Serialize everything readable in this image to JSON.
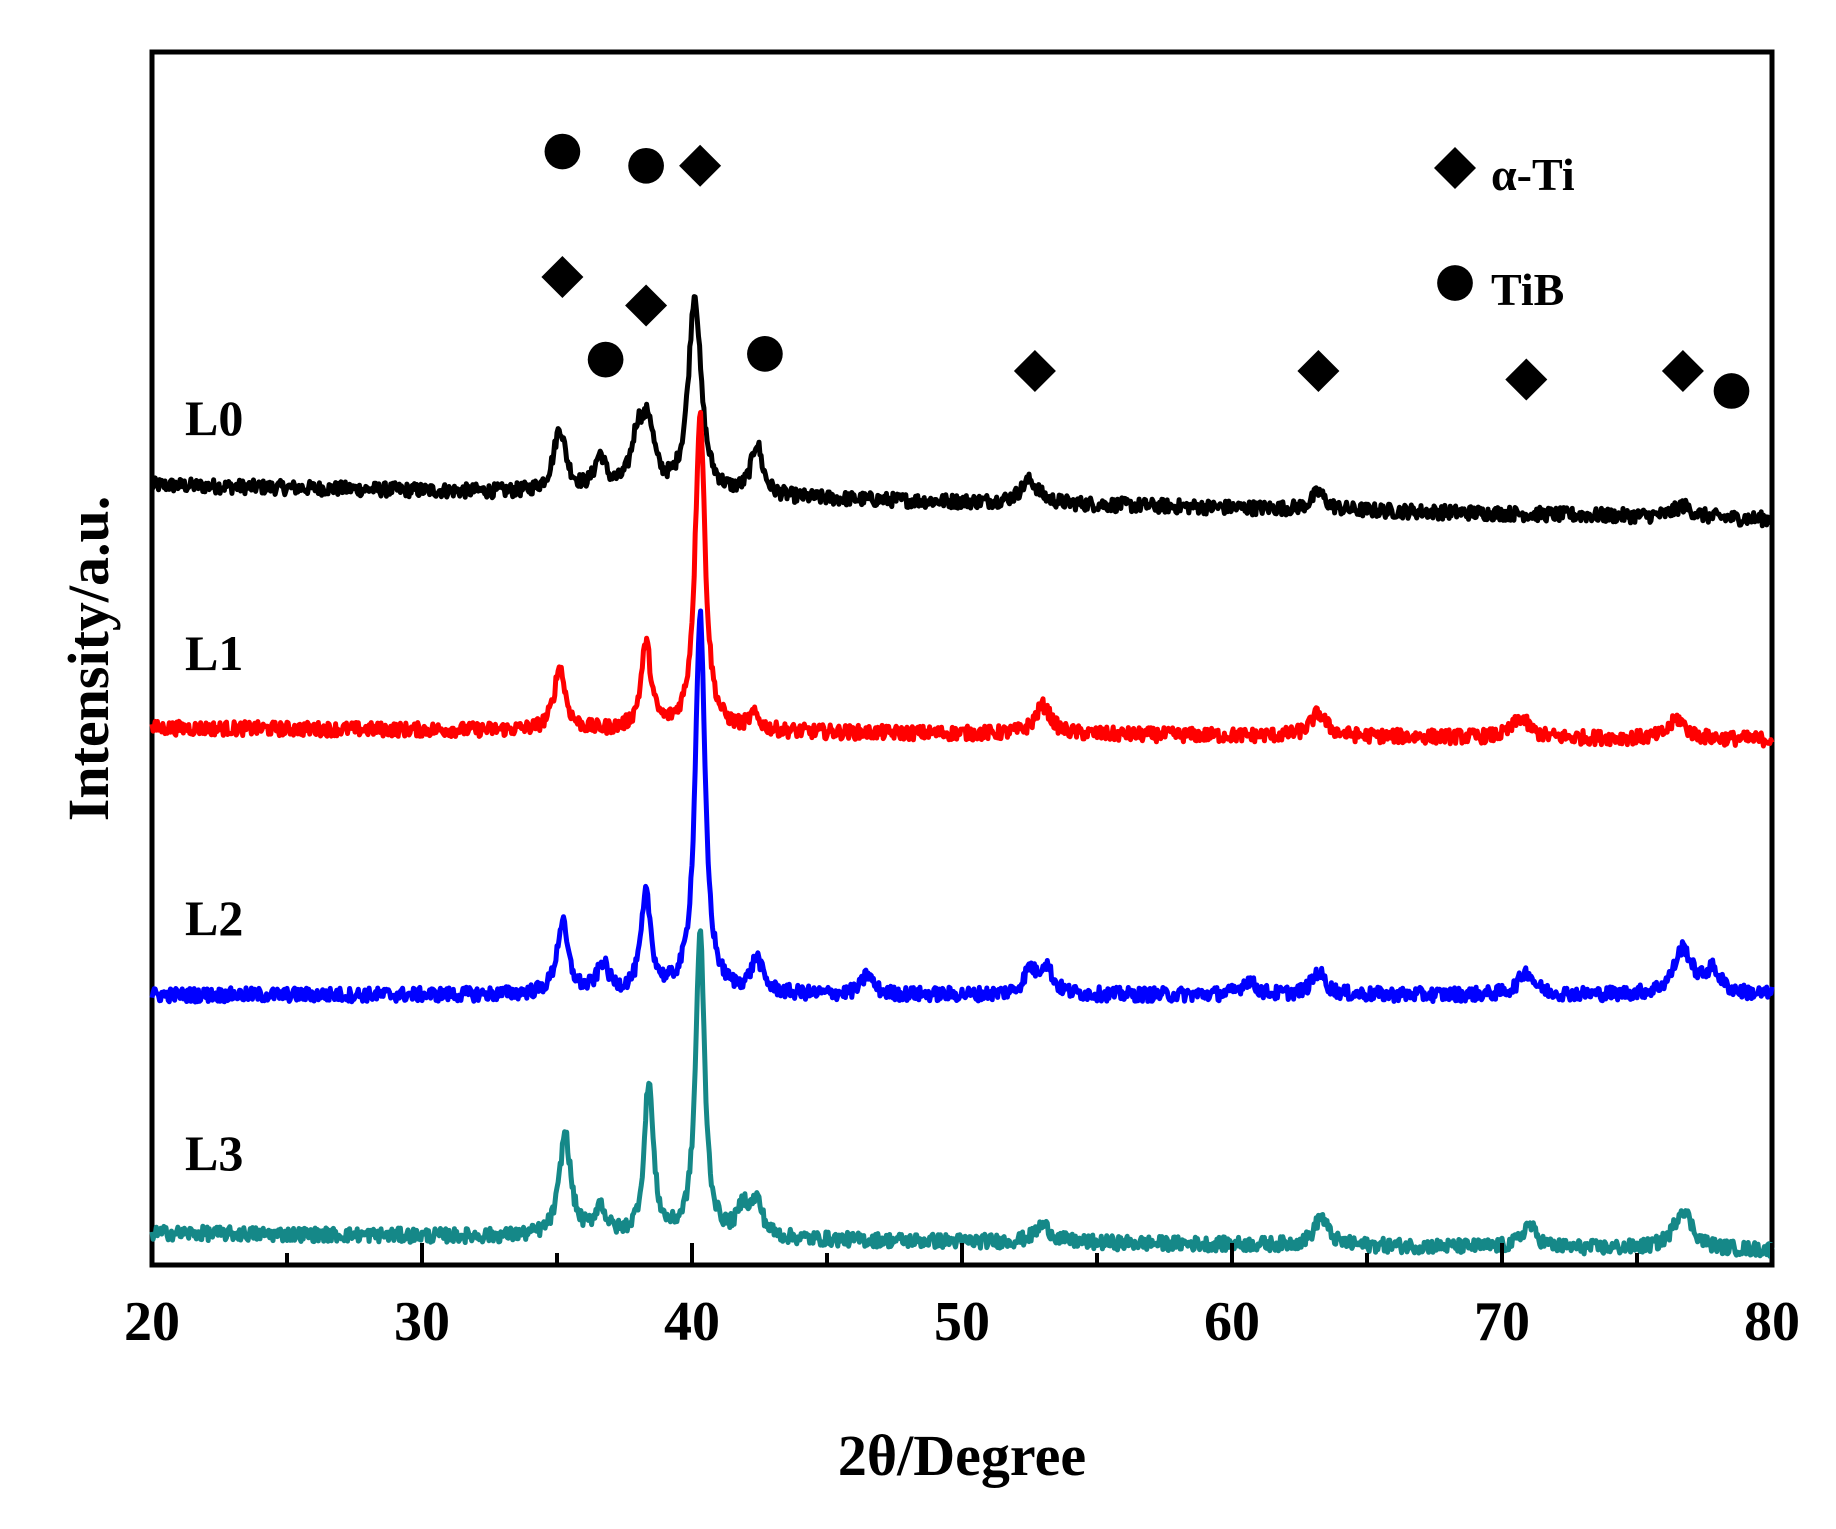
{
  "chart_data": {
    "type": "line",
    "title": "",
    "xlabel": "2θ/Degree",
    "ylabel": "Intensity/a.u.",
    "xlim": [
      20,
      80
    ],
    "xticks": [
      20,
      30,
      40,
      50,
      60,
      70,
      80
    ],
    "yticks_shown": false,
    "grid": false,
    "legend": {
      "placement": "top-right",
      "entries": [
        {
          "marker": "diamond",
          "label": "α-Ti"
        },
        {
          "marker": "circle",
          "label": "TiB"
        }
      ]
    },
    "series": [
      {
        "name": "L0",
        "color": "#000000",
        "baseline_start": 0.0,
        "baseline_end": -0.12,
        "peaks": [
          {
            "x": 35.1,
            "height": 0.22,
            "width": 0.28
          },
          {
            "x": 36.6,
            "height": 0.12,
            "width": 0.25
          },
          {
            "x": 38.0,
            "height": 0.2,
            "width": 0.3
          },
          {
            "x": 38.4,
            "height": 0.2,
            "width": 0.25
          },
          {
            "x": 40.1,
            "height": 0.7,
            "width": 0.28
          },
          {
            "x": 42.4,
            "height": 0.18,
            "width": 0.25
          },
          {
            "x": 52.5,
            "height": 0.08,
            "width": 0.4
          },
          {
            "x": 63.2,
            "height": 0.06,
            "width": 0.3
          },
          {
            "x": 76.7,
            "height": 0.04,
            "width": 0.4
          }
        ],
        "markers": [
          {
            "x": 35.2,
            "marker": "diamond",
            "phase": "α-Ti",
            "level": 0.73
          },
          {
            "x": 35.2,
            "marker": "circle",
            "phase": "TiB",
            "level": 1.17
          },
          {
            "x": 36.8,
            "marker": "circle",
            "phase": "TiB",
            "level": 0.44
          },
          {
            "x": 38.3,
            "marker": "diamond",
            "phase": "α-Ti",
            "level": 0.63
          },
          {
            "x": 38.3,
            "marker": "circle",
            "phase": "TiB",
            "level": 1.12
          },
          {
            "x": 40.3,
            "marker": "diamond",
            "phase": "α-Ti",
            "level": 1.12
          },
          {
            "x": 42.7,
            "marker": "circle",
            "phase": "TiB",
            "level": 0.46
          },
          {
            "x": 52.7,
            "marker": "diamond",
            "phase": "α-Ti",
            "level": 0.4
          },
          {
            "x": 63.2,
            "marker": "diamond",
            "phase": "α-Ti",
            "level": 0.4
          },
          {
            "x": 70.9,
            "marker": "diamond",
            "phase": "α-Ti",
            "level": 0.37
          },
          {
            "x": 76.7,
            "marker": "diamond",
            "phase": "α-Ti",
            "level": 0.4
          },
          {
            "x": 78.5,
            "marker": "circle",
            "phase": "TiB",
            "level": 0.33
          }
        ]
      },
      {
        "name": "L1",
        "color": "#ff0000",
        "baseline_start": 0.0,
        "baseline_end": -0.04,
        "peaks": [
          {
            "x": 35.1,
            "height": 0.22,
            "width": 0.25
          },
          {
            "x": 38.3,
            "height": 0.3,
            "width": 0.22
          },
          {
            "x": 40.3,
            "height": 1.12,
            "width": 0.22
          },
          {
            "x": 42.3,
            "height": 0.05,
            "width": 0.25
          },
          {
            "x": 53.0,
            "height": 0.1,
            "width": 0.35
          },
          {
            "x": 63.2,
            "height": 0.08,
            "width": 0.35
          },
          {
            "x": 70.7,
            "height": 0.07,
            "width": 0.35
          },
          {
            "x": 76.5,
            "height": 0.07,
            "width": 0.35
          }
        ]
      },
      {
        "name": "L2",
        "color": "#0000ff",
        "baseline_start": 0.0,
        "baseline_end": 0.0,
        "peaks": [
          {
            "x": 35.2,
            "height": 0.25,
            "width": 0.25
          },
          {
            "x": 36.7,
            "height": 0.1,
            "width": 0.25
          },
          {
            "x": 38.3,
            "height": 0.34,
            "width": 0.22
          },
          {
            "x": 40.3,
            "height": 1.33,
            "width": 0.22
          },
          {
            "x": 42.4,
            "height": 0.12,
            "width": 0.25
          },
          {
            "x": 46.5,
            "height": 0.07,
            "width": 0.25
          },
          {
            "x": 52.5,
            "height": 0.08,
            "width": 0.25
          },
          {
            "x": 53.1,
            "height": 0.1,
            "width": 0.3
          },
          {
            "x": 60.6,
            "height": 0.05,
            "width": 0.3
          },
          {
            "x": 63.2,
            "height": 0.08,
            "width": 0.3
          },
          {
            "x": 70.9,
            "height": 0.08,
            "width": 0.35
          },
          {
            "x": 76.7,
            "height": 0.16,
            "width": 0.4
          },
          {
            "x": 77.8,
            "height": 0.08,
            "width": 0.35
          }
        ]
      },
      {
        "name": "L3",
        "color": "#158888",
        "baseline_start": 0.0,
        "baseline_end": -0.06,
        "peaks": [
          {
            "x": 35.3,
            "height": 0.36,
            "width": 0.25
          },
          {
            "x": 36.6,
            "height": 0.1,
            "width": 0.25
          },
          {
            "x": 38.4,
            "height": 0.54,
            "width": 0.2
          },
          {
            "x": 40.3,
            "height": 1.07,
            "width": 0.2
          },
          {
            "x": 41.9,
            "height": 0.1,
            "width": 0.25
          },
          {
            "x": 42.4,
            "height": 0.12,
            "width": 0.25
          },
          {
            "x": 53.0,
            "height": 0.06,
            "width": 0.35
          },
          {
            "x": 63.3,
            "height": 0.1,
            "width": 0.3
          },
          {
            "x": 71.0,
            "height": 0.08,
            "width": 0.3
          },
          {
            "x": 76.7,
            "height": 0.14,
            "width": 0.4
          }
        ]
      }
    ]
  }
}
